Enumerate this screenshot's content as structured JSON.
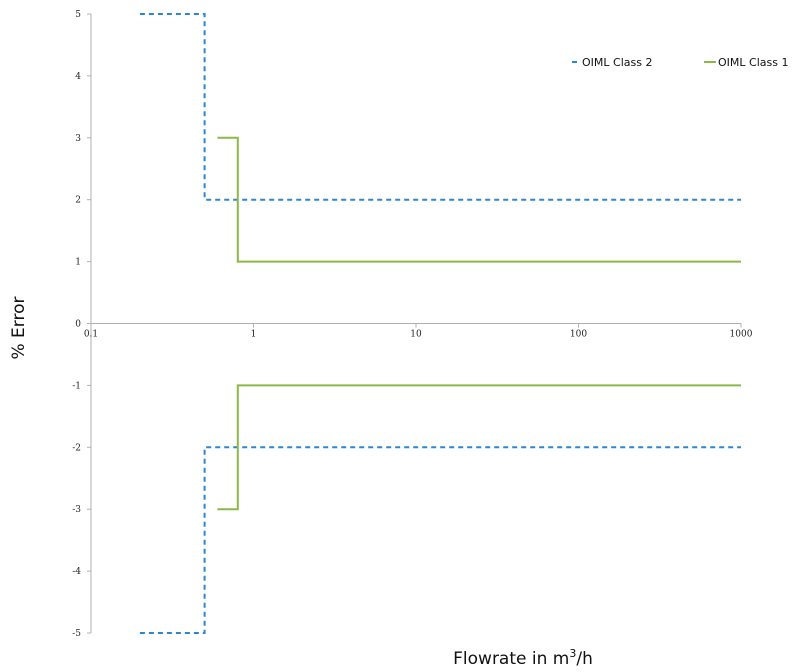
{
  "chart_data": {
    "type": "line",
    "title": "",
    "xlabel": "Flowrate in m",
    "xlabel_sup": "3",
    "xlabel_suffix": "/h",
    "ylabel": "% Error",
    "xscale": "log",
    "xlim": [
      0.1,
      1000
    ],
    "ylim": [
      -5,
      5
    ],
    "x_ticks": [
      0.1,
      1,
      10,
      100,
      1000
    ],
    "x_tick_labels": [
      "0.1",
      "1",
      "10",
      "100",
      "1000"
    ],
    "y_ticks": [
      -5,
      -4,
      -3,
      -2,
      -1,
      0,
      1,
      2,
      3,
      4,
      5
    ],
    "y_tick_labels": [
      "-5",
      "-4",
      "-3",
      "-2",
      "-1",
      "0",
      "1",
      "2",
      "3",
      "4",
      "5"
    ],
    "grid": false,
    "legend_position": "top-right",
    "series": [
      {
        "name": "OIML Class 2",
        "color": "#2e86d0",
        "dash": "dashed",
        "segments": [
          [
            [
              0.2,
              5
            ],
            [
              0.5,
              5
            ],
            [
              0.5,
              2
            ],
            [
              1000,
              2
            ]
          ],
          [
            [
              0.2,
              -5
            ],
            [
              0.5,
              -5
            ],
            [
              0.5,
              -2
            ],
            [
              1000,
              -2
            ]
          ]
        ]
      },
      {
        "name": "OIML Class 1",
        "color": "#8cb84a",
        "dash": "solid",
        "segments": [
          [
            [
              0.6,
              3
            ],
            [
              0.8,
              3
            ],
            [
              0.8,
              1
            ],
            [
              1000,
              1
            ]
          ],
          [
            [
              0.6,
              -3
            ],
            [
              0.8,
              -3
            ],
            [
              0.8,
              -1
            ],
            [
              1000,
              -1
            ]
          ]
        ]
      }
    ]
  }
}
